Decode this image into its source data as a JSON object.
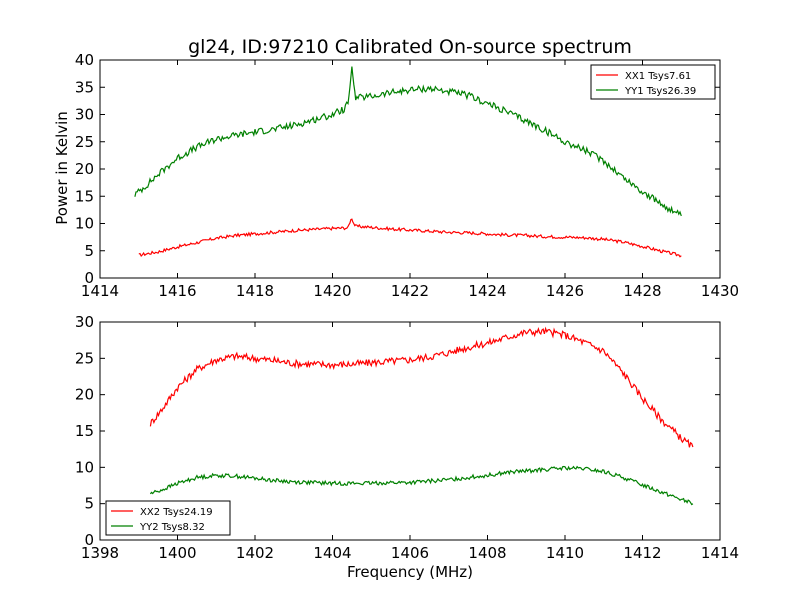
{
  "figure_title": "gl24, ID:97210 Calibrated On-source spectrum",
  "ylabel": "Power in Kelvin",
  "xlabel": "Frequency (MHz)",
  "chart_data": [
    {
      "type": "line",
      "xlim": [
        1414,
        1430
      ],
      "ylim": [
        0,
        40
      ],
      "xticks": [
        1414,
        1416,
        1418,
        1420,
        1422,
        1424,
        1426,
        1428,
        1430
      ],
      "yticks": [
        0,
        5,
        10,
        15,
        20,
        25,
        30,
        35,
        40
      ],
      "legend_position": "top-right",
      "series": [
        {
          "name": "XX1 Tsys7.61",
          "color": "#ff0000",
          "points": [
            [
              1415.0,
              4.2
            ],
            [
              1415.5,
              4.8
            ],
            [
              1416,
              5.7
            ],
            [
              1416.5,
              6.5
            ],
            [
              1417,
              7.3
            ],
            [
              1417.5,
              7.8
            ],
            [
              1418,
              8.1
            ],
            [
              1418.5,
              8.4
            ],
            [
              1419,
              8.7
            ],
            [
              1419.5,
              8.9
            ],
            [
              1420,
              9.1
            ],
            [
              1420.4,
              9.2
            ],
            [
              1420.45,
              10.3
            ],
            [
              1420.5,
              11.0
            ],
            [
              1420.55,
              10.0
            ],
            [
              1420.6,
              9.5
            ],
            [
              1421,
              9.3
            ],
            [
              1421.5,
              9.0
            ],
            [
              1422,
              8.8
            ],
            [
              1422.5,
              8.6
            ],
            [
              1423,
              8.4
            ],
            [
              1423.5,
              8.3
            ],
            [
              1424,
              8.1
            ],
            [
              1424.5,
              7.9
            ],
            [
              1425,
              7.8
            ],
            [
              1425.5,
              7.6
            ],
            [
              1426,
              7.5
            ],
            [
              1426.5,
              7.4
            ],
            [
              1427,
              7.1
            ],
            [
              1427.5,
              6.6
            ],
            [
              1428,
              5.8
            ],
            [
              1428.5,
              4.9
            ],
            [
              1429.0,
              4.1
            ]
          ]
        },
        {
          "name": "YY1 Tsys26.39",
          "color": "#008000",
          "points": [
            [
              1414.9,
              15.3
            ],
            [
              1415.2,
              17.0
            ],
            [
              1415.5,
              19.0
            ],
            [
              1416,
              22.0
            ],
            [
              1416.5,
              24.0
            ],
            [
              1417,
              25.5
            ],
            [
              1417.5,
              26.2
            ],
            [
              1418,
              26.8
            ],
            [
              1418.5,
              27.3
            ],
            [
              1419,
              28.0
            ],
            [
              1419.5,
              29.0
            ],
            [
              1420,
              30.0
            ],
            [
              1420.3,
              31.0
            ],
            [
              1420.4,
              32.0
            ],
            [
              1420.45,
              35.0
            ],
            [
              1420.5,
              38.8
            ],
            [
              1420.55,
              35.5
            ],
            [
              1420.6,
              33.0
            ],
            [
              1421,
              33.3
            ],
            [
              1421.5,
              34.0
            ],
            [
              1422,
              34.5
            ],
            [
              1422.5,
              34.8
            ],
            [
              1423,
              34.2
            ],
            [
              1423.5,
              33.5
            ],
            [
              1424,
              32.0
            ],
            [
              1424.5,
              30.5
            ],
            [
              1425,
              28.8
            ],
            [
              1425.5,
              27.0
            ],
            [
              1426,
              25.0
            ],
            [
              1426.5,
              23.5
            ],
            [
              1427,
              21.5
            ],
            [
              1427.5,
              18.5
            ],
            [
              1428,
              15.8
            ],
            [
              1428.5,
              13.5
            ],
            [
              1429.0,
              11.4
            ]
          ]
        }
      ]
    },
    {
      "type": "line",
      "xlim": [
        1398,
        1414
      ],
      "ylim": [
        0,
        30
      ],
      "xticks": [
        1398,
        1400,
        1402,
        1404,
        1406,
        1408,
        1410,
        1412,
        1414
      ],
      "yticks": [
        0,
        5,
        10,
        15,
        20,
        25,
        30
      ],
      "legend_position": "lower-left",
      "series": [
        {
          "name": "XX2 Tsys24.19",
          "color": "#ff0000",
          "points": [
            [
              1399.3,
              16.0
            ],
            [
              1399.6,
              18.0
            ],
            [
              1400,
              21.0
            ],
            [
              1400.5,
              23.5
            ],
            [
              1401,
              24.8
            ],
            [
              1401.5,
              25.3
            ],
            [
              1402,
              25.0
            ],
            [
              1402.5,
              24.7
            ],
            [
              1403,
              24.3
            ],
            [
              1403.5,
              24.2
            ],
            [
              1404,
              24.1
            ],
            [
              1404.5,
              24.2
            ],
            [
              1405,
              24.4
            ],
            [
              1405.5,
              24.6
            ],
            [
              1406,
              24.8
            ],
            [
              1406.5,
              25.2
            ],
            [
              1407,
              25.8
            ],
            [
              1407.5,
              26.5
            ],
            [
              1408,
              27.1
            ],
            [
              1408.5,
              27.9
            ],
            [
              1409,
              28.6
            ],
            [
              1409.5,
              28.7
            ],
            [
              1410,
              28.2
            ],
            [
              1410.5,
              27.2
            ],
            [
              1411,
              26.0
            ],
            [
              1411.5,
              23.0
            ],
            [
              1412,
              19.5
            ],
            [
              1412.5,
              16.5
            ],
            [
              1413,
              14.0
            ],
            [
              1413.3,
              12.8
            ]
          ]
        },
        {
          "name": "YY2 Tsys8.32",
          "color": "#008000",
          "points": [
            [
              1399.3,
              6.4
            ],
            [
              1399.6,
              6.9
            ],
            [
              1400,
              7.8
            ],
            [
              1400.5,
              8.6
            ],
            [
              1401,
              8.9
            ],
            [
              1401.5,
              8.8
            ],
            [
              1402,
              8.5
            ],
            [
              1402.5,
              8.2
            ],
            [
              1403,
              8.0
            ],
            [
              1403.5,
              7.9
            ],
            [
              1404,
              7.8
            ],
            [
              1404.5,
              7.8
            ],
            [
              1405,
              7.8
            ],
            [
              1405.5,
              7.9
            ],
            [
              1406,
              7.9
            ],
            [
              1406.5,
              8.1
            ],
            [
              1407,
              8.3
            ],
            [
              1407.5,
              8.6
            ],
            [
              1408,
              8.9
            ],
            [
              1408.5,
              9.3
            ],
            [
              1409,
              9.5
            ],
            [
              1409.5,
              9.7
            ],
            [
              1410,
              9.9
            ],
            [
              1410.5,
              9.8
            ],
            [
              1411,
              9.4
            ],
            [
              1411.5,
              8.6
            ],
            [
              1412,
              7.6
            ],
            [
              1412.5,
              6.6
            ],
            [
              1413,
              5.6
            ],
            [
              1413.3,
              5.0
            ]
          ]
        }
      ]
    }
  ]
}
